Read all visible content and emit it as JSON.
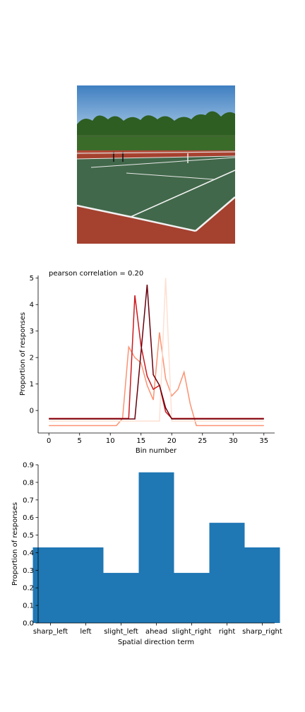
{
  "chart_data": [
    {
      "type": "line",
      "title": "pearson correlation = 0.20",
      "xlabel": "Bin number",
      "ylabel": "Proportion of responses",
      "xlim": [
        -1.75,
        36.75
      ],
      "ylim": [
        -0.85,
        5.1
      ],
      "xticks": [
        0,
        5,
        10,
        15,
        20,
        25,
        30,
        35
      ],
      "yticks": [
        0,
        1,
        2,
        3,
        4,
        5
      ],
      "grid": false,
      "series": [
        {
          "color": "#fc9272",
          "x": [
            0,
            1,
            2,
            3,
            4,
            5,
            6,
            7,
            8,
            9,
            10,
            11,
            12,
            13,
            14,
            15,
            16,
            17,
            18,
            19,
            20,
            21,
            22,
            23,
            24,
            25,
            26,
            27,
            28,
            29,
            30,
            31,
            32,
            33,
            34,
            35
          ],
          "y": [
            -0.57,
            -0.57,
            -0.57,
            -0.57,
            -0.57,
            -0.57,
            -0.57,
            -0.57,
            -0.57,
            -0.57,
            -0.57,
            -0.57,
            -0.3,
            2.4,
            2.0,
            1.8,
            0.95,
            0.4,
            2.95,
            1.2,
            0.55,
            0.8,
            1.45,
            0.25,
            -0.57,
            -0.57,
            -0.57,
            -0.57,
            -0.57,
            -0.57,
            -0.57,
            -0.57,
            -0.57,
            -0.57,
            -0.57,
            -0.57
          ]
        },
        {
          "color": "#fee0d2",
          "x": [
            0,
            1,
            2,
            3,
            4,
            5,
            6,
            7,
            8,
            9,
            10,
            11,
            12,
            13,
            14,
            15,
            16,
            17,
            18,
            19,
            20,
            21,
            22,
            23,
            24,
            25,
            26,
            27,
            28,
            29,
            30,
            31,
            32,
            33,
            34,
            35
          ],
          "y": [
            -0.4,
            -0.4,
            -0.4,
            -0.4,
            -0.4,
            -0.4,
            -0.4,
            -0.4,
            -0.4,
            -0.4,
            -0.4,
            -0.4,
            -0.4,
            -0.4,
            -0.4,
            -0.4,
            -0.4,
            -0.4,
            -0.4,
            5.0,
            -0.4,
            -0.4,
            -0.4,
            -0.4,
            -0.4,
            -0.4,
            -0.4,
            -0.4,
            -0.4,
            -0.4,
            -0.4,
            -0.4,
            -0.4,
            -0.4,
            -0.4,
            -0.4
          ]
        },
        {
          "color": "#cb181d",
          "x": [
            0,
            1,
            2,
            3,
            4,
            5,
            6,
            7,
            8,
            9,
            10,
            11,
            12,
            13,
            14,
            15,
            16,
            17,
            18,
            19,
            20,
            21,
            22,
            23,
            24,
            25,
            26,
            27,
            28,
            29,
            30,
            31,
            32,
            33,
            34,
            35
          ],
          "y": [
            -0.3,
            -0.3,
            -0.3,
            -0.3,
            -0.3,
            -0.3,
            -0.3,
            -0.3,
            -0.3,
            -0.3,
            -0.3,
            -0.3,
            -0.3,
            -0.3,
            4.35,
            2.45,
            1.3,
            0.8,
            0.95,
            -0.05,
            -0.3,
            -0.3,
            -0.3,
            -0.3,
            -0.3,
            -0.3,
            -0.3,
            -0.3,
            -0.3,
            -0.3,
            -0.3,
            -0.3,
            -0.3,
            -0.3,
            -0.3,
            -0.3
          ]
        },
        {
          "color": "#67000d",
          "x": [
            0,
            1,
            2,
            3,
            4,
            5,
            6,
            7,
            8,
            9,
            10,
            11,
            12,
            13,
            14,
            15,
            16,
            17,
            18,
            19,
            20,
            21,
            22,
            23,
            24,
            25,
            26,
            27,
            28,
            29,
            30,
            31,
            32,
            33,
            34,
            35
          ],
          "y": [
            -0.32,
            -0.32,
            -0.32,
            -0.32,
            -0.32,
            -0.32,
            -0.32,
            -0.32,
            -0.32,
            -0.32,
            -0.32,
            -0.32,
            -0.32,
            -0.32,
            -0.32,
            2.2,
            4.75,
            1.35,
            0.95,
            0.1,
            -0.32,
            -0.32,
            -0.32,
            -0.32,
            -0.32,
            -0.32,
            -0.32,
            -0.32,
            -0.32,
            -0.32,
            -0.32,
            -0.32,
            -0.32,
            -0.32,
            -0.32,
            -0.32
          ]
        }
      ]
    },
    {
      "type": "bar",
      "xlabel": "Spatial direction term",
      "ylabel": "Proportion of responses",
      "ylim": [
        0,
        0.9
      ],
      "yticks": [
        "0.0",
        "0.1",
        "0.2",
        "0.3",
        "0.4",
        "0.5",
        "0.6",
        "0.7",
        "0.8",
        "0.9"
      ],
      "categories": [
        "sharp_left",
        "left",
        "slight_left",
        "ahead",
        "slight_right",
        "right",
        "sharp_right"
      ],
      "values": [
        0.43,
        0.43,
        0.285,
        0.857,
        0.285,
        0.57,
        0.43
      ],
      "bar_color": "#1f77b4",
      "grid": false
    }
  ]
}
